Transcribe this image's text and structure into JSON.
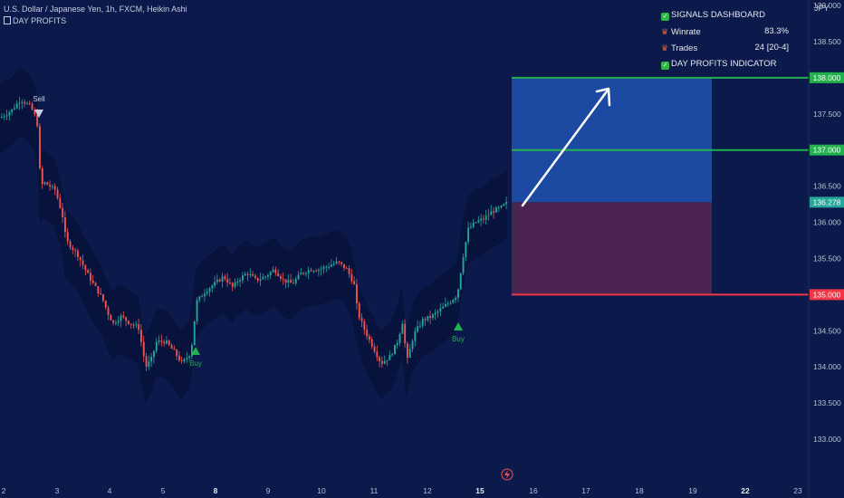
{
  "header": {
    "symbol_line": "U.S. Dollar / Japanese Yen, 1h, FXCM, Heikin Ashi",
    "indicator_line": "DAY PROFITS"
  },
  "currency": "JPY",
  "dashboard": {
    "title": "SIGNALS DASHBOARD",
    "rows": [
      {
        "label": "Winrate",
        "value": "83.3%"
      },
      {
        "label": "Trades",
        "value": "24 [20-4]"
      }
    ],
    "footer": "DAY PROFITS INDICATOR"
  },
  "colors": {
    "background": "#0b1a4a",
    "bull": "#26a69a",
    "bear": "#ef5350",
    "target": "#22b14c",
    "stop": "#f23645",
    "profit_zone": "#1c4aa3",
    "loss_zone": "#4a2351",
    "buy_signal": "#22b14c",
    "sell_signal": "#c7cde0"
  },
  "chart_data": {
    "type": "candlestick",
    "y_range": [
      132.5,
      139.0
    ],
    "y_ticks": [
      "133.000",
      "133.500",
      "134.000",
      "134.500",
      "135.000",
      "135.500",
      "136.000",
      "136.500",
      "137.000",
      "137.500",
      "138.000",
      "138.500",
      "139.000"
    ],
    "x_ticks": [
      "2",
      "3",
      "4",
      "5",
      "8",
      "9",
      "10",
      "11",
      "12",
      "15",
      "16",
      "17",
      "18",
      "19",
      "22",
      "23"
    ],
    "x_bold_ticks": [
      "8",
      "15",
      "22"
    ],
    "last_price": "136.278",
    "price_path": [
      [
        0,
        137.45
      ],
      [
        12,
        137.55
      ],
      [
        22,
        137.7
      ],
      [
        33,
        137.6
      ],
      [
        40,
        137.4
      ],
      [
        44,
        136.5
      ],
      [
        48,
        136.55
      ],
      [
        60,
        136.45
      ],
      [
        68,
        136.1
      ],
      [
        72,
        135.75
      ],
      [
        85,
        135.55
      ],
      [
        95,
        135.3
      ],
      [
        102,
        135.15
      ],
      [
        112,
        134.95
      ],
      [
        118,
        134.75
      ],
      [
        124,
        134.6
      ],
      [
        133,
        134.7
      ],
      [
        143,
        134.6
      ],
      [
        152,
        134.55
      ],
      [
        160,
        134.0
      ],
      [
        166,
        134.1
      ],
      [
        172,
        134.35
      ],
      [
        182,
        134.35
      ],
      [
        192,
        134.2
      ],
      [
        200,
        134.05
      ],
      [
        210,
        134.2
      ],
      [
        216,
        134.9
      ],
      [
        226,
        135.05
      ],
      [
        236,
        135.15
      ],
      [
        246,
        135.25
      ],
      [
        256,
        135.1
      ],
      [
        262,
        135.2
      ],
      [
        272,
        135.3
      ],
      [
        282,
        135.2
      ],
      [
        292,
        135.25
      ],
      [
        302,
        135.35
      ],
      [
        312,
        135.2
      ],
      [
        322,
        135.15
      ],
      [
        332,
        135.3
      ],
      [
        342,
        135.35
      ],
      [
        352,
        135.35
      ],
      [
        362,
        135.4
      ],
      [
        372,
        135.45
      ],
      [
        382,
        135.35
      ],
      [
        390,
        135.15
      ],
      [
        394,
        134.75
      ],
      [
        402,
        134.5
      ],
      [
        412,
        134.25
      ],
      [
        420,
        134.05
      ],
      [
        430,
        134.15
      ],
      [
        438,
        134.35
      ],
      [
        444,
        134.65
      ],
      [
        448,
        134.05
      ],
      [
        456,
        134.45
      ],
      [
        466,
        134.65
      ],
      [
        476,
        134.7
      ],
      [
        486,
        134.8
      ],
      [
        496,
        134.9
      ],
      [
        504,
        135.0
      ],
      [
        510,
        135.5
      ],
      [
        516,
        135.9
      ],
      [
        524,
        136.0
      ],
      [
        534,
        136.05
      ],
      [
        542,
        136.15
      ],
      [
        552,
        136.2
      ],
      [
        560,
        136.28
      ]
    ],
    "signals": [
      {
        "type": "sell",
        "label": "Sell",
        "bar_x": 43,
        "price": 137.6
      },
      {
        "type": "buy",
        "label": "Buy",
        "bar_x": 216,
        "price": 134.2
      },
      {
        "type": "buy",
        "label": "Buy",
        "bar_x": 506,
        "price": 134.95
      }
    ],
    "levels": [
      {
        "label": "138.000",
        "price": 138.0,
        "kind": "target"
      },
      {
        "label": "137.000",
        "price": 137.0,
        "kind": "target"
      },
      {
        "label": "135.000",
        "price": 135.0,
        "kind": "stop"
      }
    ],
    "position_box": {
      "entry": 136.278,
      "target": 138.0,
      "stop": 135.0
    }
  }
}
